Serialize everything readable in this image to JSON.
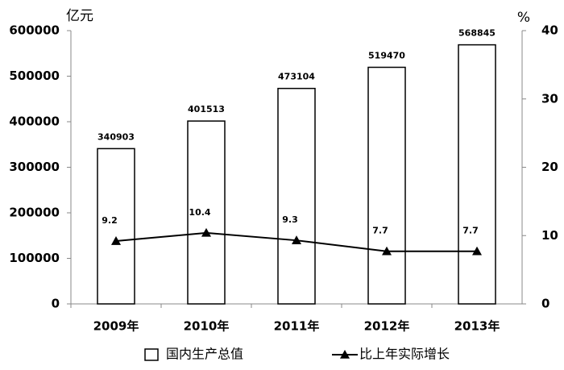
{
  "chart_data": {
    "type": "bar",
    "y_label": "亿元",
    "y2_label": "%",
    "categories": [
      "2009年",
      "2010年",
      "2011年",
      "2012年",
      "2013年"
    ],
    "series": [
      {
        "name": "国内生产总值",
        "type": "bar",
        "color": "#ffffff",
        "values": [
          340903,
          401513,
          473104,
          519470,
          568845
        ]
      },
      {
        "name": "比上年实际增长",
        "type": "line",
        "color": "#000000",
        "axis": "y2",
        "values": [
          9.2,
          10.4,
          9.3,
          7.7,
          7.7
        ]
      }
    ],
    "ylim": [
      0,
      600000
    ],
    "yticks": [
      0,
      100000,
      200000,
      300000,
      400000,
      500000,
      600000
    ],
    "y2lim": [
      0,
      40
    ],
    "y2ticks": [
      0,
      10,
      20,
      30,
      40
    ],
    "grid": false
  }
}
